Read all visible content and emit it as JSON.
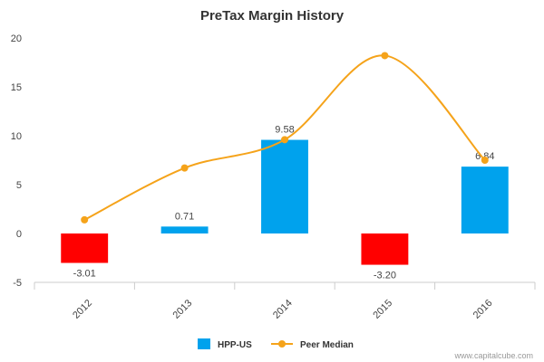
{
  "chart_data": {
    "type": "bar",
    "title": "PreTax Margin History",
    "categories": [
      "2012",
      "2013",
      "2014",
      "2015",
      "2016"
    ],
    "ylim": [
      -5,
      20
    ],
    "yticks": [
      -5,
      0,
      5,
      10,
      15,
      20
    ],
    "grid": false,
    "legend_position": "bottom",
    "series": [
      {
        "name": "HPP-US",
        "kind": "bar",
        "values": [
          -3.01,
          0.71,
          9.58,
          -3.2,
          6.84
        ],
        "labels": [
          "-3.01",
          "0.71",
          "9.58",
          "-3.20",
          "6.84"
        ],
        "color_positive": "#00a2ed",
        "color_negative": "#ff0000"
      },
      {
        "name": "Peer Median",
        "kind": "line",
        "values": [
          1.4,
          6.7,
          9.6,
          18.2,
          7.5
        ],
        "color": "#f5a31a"
      }
    ]
  },
  "watermark": "www.capitalcube.com"
}
